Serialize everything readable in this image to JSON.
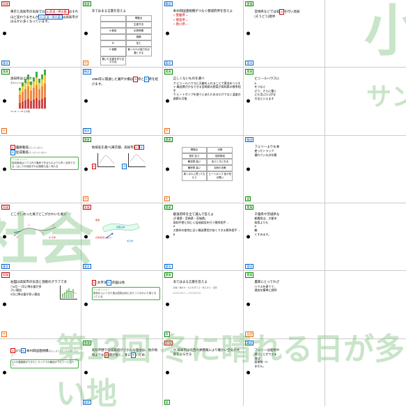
{
  "tags": {
    "kiko": "気候",
    "nogyo": "農業",
    "yuso": "輸送",
    "kihon": "基本",
    "chu": "中",
    "yasa": "易"
  },
  "cards": [
    {
      "r": 0,
      "c": 0,
      "tl": "気候",
      "tl_c": "t-red",
      "bl": "基本",
      "bl_c": "t-blue",
      "text": "東京と高知市の気候では",
      "a": "A (気温・降水量)",
      "mid": "はそれほど変わりませんが",
      "b": "B (気温・降水量)",
      "tail": "は高知市がはるかに多くなっています。"
    },
    {
      "r": 0,
      "c": 1,
      "tl": "農業",
      "tl_c": "t-green",
      "bl": "中",
      "bl_c": "t-orange",
      "text": "あてはまる言葉を答えよ",
      "table": [
        "",
        "問題点",
        "",
        "生産方法",
        "A 栽培",
        "出荷時期",
        "",
        "価格",
        "B",
        "加工",
        "D 価格",
        "普くの人の協力を必要とする",
        "着いた天候を作り出す方法"
      ]
    },
    {
      "r": 0,
      "c": 2,
      "tl": "輸送",
      "tl_c": "t-blue",
      "bl": "基本",
      "bl_c": "t-blue",
      "text": "本州四国連絡橋がつなぐ都道府県を答えよ",
      "items": [
        "愛媛県⇔",
        "徳島県⇔",
        "香川県⇔"
      ]
    },
    {
      "r": 0,
      "c": 3,
      "tl": "農業",
      "tl_c": "t-green",
      "text": "宮崎県などでは高",
      "a": "A",
      "mid": "を行い高知",
      "tail2": "(そうどう)相手",
      "bl": "基本",
      "bl_c": "t-blue"
    },
    {
      "r": 0,
      "c": 4,
      "hide": true
    },
    {
      "r": 1,
      "c": 0,
      "tl": "農業",
      "tl_c": "t-green",
      "bl": "中",
      "bl_c": "t-orange",
      "text": "高知県はどれか",
      "sub": "東北の4つの県の収穫量",
      "chart": true,
      "legend": [
        "A",
        "B",
        "C",
        "D その他"
      ]
    },
    {
      "r": 1,
      "c": 1,
      "tl": "輸送",
      "tl_c": "t-blue",
      "bl": "基本",
      "bl_c": "t-blue",
      "text": "1988年に開通した瀬戸大橋は",
      "a": "A",
      "mid2": "県と",
      "b": "B",
      "tail": "県を結びます。"
    },
    {
      "r": 1,
      "c": 2,
      "tl": "農業",
      "tl_c": "t-green",
      "bl": "中",
      "bl_c": "t-orange",
      "text": "正しくないものを選べ",
      "items2": [
        "ア.ビニールハウスに天敵を入れることで害虫をへらす",
        "イ.輸送費がかなできる宮崎県の野菜が高知県の競争相手",
        "ウ.ヒートポンプを使うとあたためるだけでなく温度の調節も可能"
      ]
    },
    {
      "r": 1,
      "c": 3,
      "tl": "農業",
      "tl_c": "t-green",
      "text": "ビニールハウスに",
      "items2": [
        "A",
        "をつなぐ",
        "せて、さらに働く",
        "にも言(ぶい)がな",
        "方法といえます"
      ]
    },
    {
      "r": 1,
      "c": 4,
      "hide": true
    },
    {
      "r": 2,
      "c": 0,
      "tl": "",
      "br": "4.2.188 - 20",
      "a": "A",
      "atext": ":露路栽培",
      "aruby": "(ろじさいばい)",
      "b": "B",
      "btext": ":促成栽培",
      "bruby": "(そくせいさいばい)",
      "tip": "ワンポイント!",
      "tiptxt": "促成栽培はハウス内で暖房で作るものよりも早く出荷できる→はしりを納品すれば価格も高く売れる"
    },
    {
      "r": 2,
      "c": 1,
      "tl": "農業",
      "tl_c": "t-green",
      "bl": "中",
      "bl_c": "t-orange",
      "text": "地域名を選べ(東京都、高知市)",
      "twochart": true,
      "a": "A",
      "b": "B"
    },
    {
      "r": 2,
      "c": 2,
      "tl": "農業",
      "tl_c": "t-green",
      "bl": "中",
      "bl_c": "t-orange",
      "text": "",
      "table2": [
        "問題点",
        "対策",
        "相手 会う",
        "促成栽培",
        "輸送費 高い",
        "会うときになる",
        "暖房費 高い",
        "自然の天敵",
        "鳥くの人に買ってもらう",
        "ヒートポンプ 色や形が悪い"
      ]
    },
    {
      "r": 2,
      "c": 3,
      "tl": "輸送",
      "tl_c": "t-blue",
      "bl": "易",
      "bl_c": "t-green",
      "text": "フェリーよりも本",
      "items2": [
        "使ったトラック",
        "優れている点を簡"
      ]
    },
    {
      "r": 2,
      "c": 4,
      "hide": true
    },
    {
      "r": 3,
      "c": 0,
      "tl": "気候",
      "tl_c": "t-red",
      "bl": "基本",
      "bl_c": "t-blue",
      "text": "どこがしめった風でどこがかわいた風か",
      "diagram": true
    },
    {
      "r": 3,
      "c": 1,
      "tl": "気候",
      "tl_c": "t-red",
      "bl": "基本",
      "bl_c": "t-blue",
      "map": true,
      "labels": [
        "夏風",
        "日本海(冬に多い)",
        "四国山地",
        "太平洋"
      ]
    },
    {
      "r": 3,
      "c": 2,
      "tl": "農業",
      "tl_c": "t-green",
      "bl": "基本",
      "bl_c": "t-blue",
      "text": "都道府県を全て選んで答えよ",
      "items2": [
        "(千葉県・宮崎県・茨城県)",
        "高知平野と同じく促成栽培を行う競争相手→",
        "A",
        "大都市の産地に近く輸送費用が安くできる競争相手→",
        "B"
      ]
    },
    {
      "r": 3,
      "c": 3,
      "tl": "農業",
      "tl_c": "t-green",
      "bl": "基本",
      "bl_c": "t-blue",
      "text": "千葉県や茨城県な",
      "items2": [
        "都農県は、大都市",
        "知県よりも",
        "A",
        "輸",
        "くすみます。"
      ]
    },
    {
      "r": 3,
      "c": 4,
      "hide": true
    },
    {
      "r": 4,
      "c": 0,
      "tl": "気候",
      "tl_c": "t-red",
      "bl": "中",
      "bl_c": "t-orange",
      "text": "右図は高知市の気温と温暖のグラフであ",
      "items2": [
        "①6月・7月に降水量が多",
        "②い理由",
        "9月に降水量が多い理由"
      ],
      "minichart": true
    },
    {
      "r": 4,
      "c": 1,
      "a": "A",
      "atext": ":太平洋",
      "b": "B",
      "btext": ":四国山地",
      "tip": "ワンポイント!",
      "tiptxt": "夏風をふいてきた風は四国山地にあたってかわいた風となっている"
    },
    {
      "r": 4,
      "c": 2,
      "tl": "農業",
      "tl_c": "t-green",
      "bl": "易",
      "bl_c": "t-green",
      "text": "あてはまる言葉を答えよ",
      "boxes": [
        "□",
        "□",
        "□",
        "□",
        "□",
        "→",
        "□",
        "□",
        "□",
        "□",
        "□"
      ],
      "sub2": "収穫・種まき・なえを育てる・植えかえ・出荷"
    },
    {
      "r": 4,
      "c": 3,
      "tl": "農業",
      "tl_c": "t-green",
      "text": "農家にとってわざ",
      "items2": [
        "ハウスを建てて、",
        "理由を簡単に説明"
      ],
      "bl": "発掘",
      "bl_c": "t-orange"
    },
    {
      "r": 4,
      "c": 4,
      "hide": true
    },
    {
      "r": 5,
      "c": 0,
      "a": "A",
      "atext": ":3つ",
      "b": "B",
      "btext": ":本州四国連絡橋",
      "bruby": "(ほんしゅうしこくれんらくきょう)",
      "tip2": "3つの連絡橋ができたトラックでの輸送がフェリーに比べて…"
    },
    {
      "r": 5,
      "c": 1,
      "tl": "農業",
      "tl_c": "t-green",
      "bl": "基本",
      "bl_c": "t-blue",
      "text": "高知平野で促成栽培がさかんな理由は、他の地域よりも",
      "a": "A",
      "mid2": "間が長く、冬に",
      "b": "B",
      "tail": "いため"
    },
    {
      "r": 5,
      "c": 2,
      "tl": "気候",
      "tl_c": "t-red",
      "bl": "易",
      "bl_c": "t-green",
      "text": "ウ.高知市は北西の季節風により暖かい空気が大雨をふらせる"
    },
    {
      "r": 5,
      "c": 3,
      "tl": "輸送",
      "tl_c": "t-blue",
      "text": "フェリーは船物や",
      "items2": [
        "運ぶことができま",
        "道は",
        "面貨物・D",
        "ません。"
      ]
    },
    {
      "r": 5,
      "c": 4,
      "hide": true
    }
  ],
  "watermarks": {
    "tr": "小",
    "l": "社会",
    "b": "第13回 冬に晴れる日が多い地",
    "r": "サン"
  },
  "chart_data": {
    "bars": [
      [
        8,
        12,
        6,
        4
      ],
      [
        10,
        14,
        8,
        5
      ],
      [
        12,
        16,
        9,
        6
      ],
      [
        14,
        18,
        10,
        7
      ],
      [
        11,
        15,
        8,
        5
      ],
      [
        13,
        17,
        9,
        6
      ],
      [
        15,
        19,
        11,
        8
      ],
      [
        12,
        16,
        9,
        6
      ],
      [
        14,
        18,
        10,
        7
      ],
      [
        16,
        20,
        12,
        8
      ]
    ],
    "colors": [
      "#c44",
      "#e84",
      "#ec4",
      "#4a4"
    ]
  }
}
